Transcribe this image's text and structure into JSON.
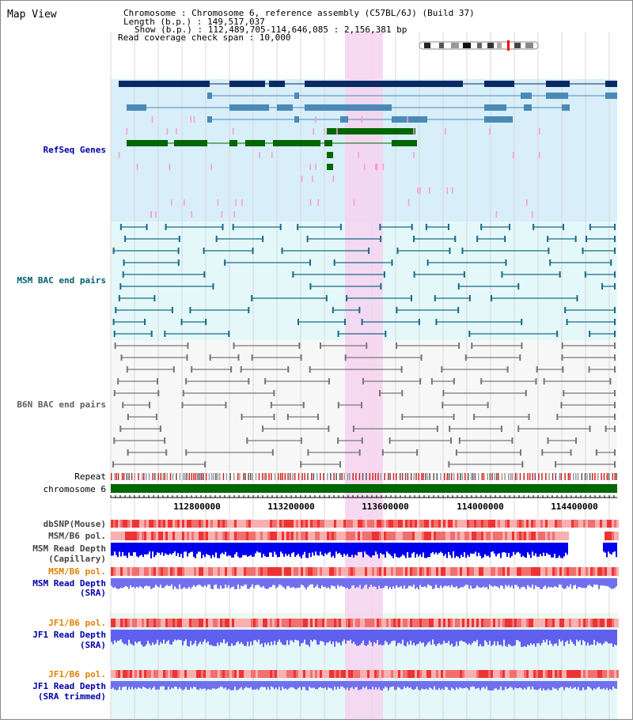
{
  "page_title": "Map View",
  "info": {
    "line1": "Chromosome     : Chromosome 6, reference assembly (C57BL/6J) (Build 37)",
    "line2": "Length (b.p.) : 149,517,037",
    "line3": "Show (b.p.) : 112,489,705-114,646,085 : 2,156,381 bp",
    "line4": "Read coverage check span : 10,000"
  },
  "tracks": {
    "refseq": "RefSeq Genes",
    "msm_bac": "MSM BAC end pairs",
    "b6n_bac": "B6N BAC end pairs",
    "repeat": "Repeat",
    "chromosome": "chromosome 6",
    "dbsnp": "dbSNP(Mouse)",
    "msm_b6_pol_1": "MSM/B6 pol.",
    "msm_depth_cap_1": "MSM Read Depth",
    "msm_depth_cap_2": "(Capillary)",
    "msm_b6_pol_2": "MSM/B6 pol.",
    "msm_depth_sra_1": "MSM Read Depth",
    "msm_depth_sra_2": "(SRA)",
    "jf1_b6_pol_1": "JF1/B6 pol.",
    "jf1_depth_sra_1": "JF1 Read Depth",
    "jf1_depth_sra_2": "(SRA)",
    "jf1_b6_pol_2": "JF1/B6 pol.",
    "jf1_depth_trim_1": "JF1 Read Depth",
    "jf1_depth_trim_2": "(SRA trimmed)"
  },
  "axis_ticks": [
    "112800000",
    "113200000",
    "113600000",
    "114000000",
    "114400000"
  ],
  "colors": {
    "title_blue": "#0000aa",
    "teal_label": "#006070",
    "grey_label": "#606060",
    "orange_label": "#e08000",
    "refseq_bg": "#d8eef8",
    "bac_bg": "#e4f8fa",
    "highlight": "#f6d4ee",
    "gene_dark": "#0a2a66",
    "gene_mid": "#4a8ab8",
    "gene_green": "#006600",
    "bac_teal": "#1a6a88",
    "chrom_green": "#006600"
  }
}
